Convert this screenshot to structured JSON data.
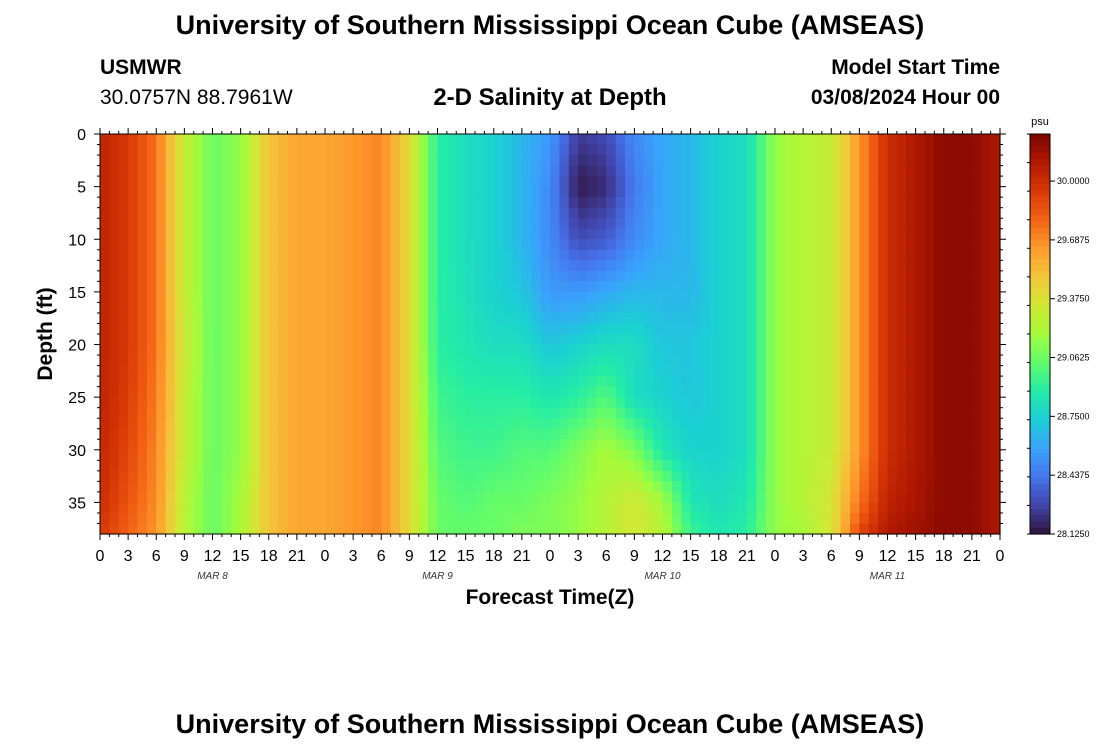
{
  "header": {
    "title": "University of Southern Mississippi Ocean Cube (AMSEAS)",
    "station": "USMWR",
    "coords": "30.0757N  88.7961W",
    "model_start_label": "Model Start Time",
    "model_start_value": "03/08/2024 Hour 00"
  },
  "footer": {
    "title": "University of Southern Mississippi Ocean Cube (AMSEAS)"
  },
  "chart_data": {
    "type": "heatmap",
    "title": "2-D Salinity at Depth",
    "xlabel": "Forecast Time(Z)",
    "ylabel": "Depth (ft)",
    "ylim": [
      0,
      38
    ],
    "y_inverted": true,
    "xlim_hours": [
      0,
      96
    ],
    "x_tick_labels": [
      "0",
      "3",
      "6",
      "9",
      "12",
      "15",
      "18",
      "21",
      "0",
      "3",
      "6",
      "9",
      "12",
      "15",
      "18",
      "21",
      "0",
      "3",
      "6",
      "9",
      "12",
      "15",
      "18",
      "21",
      "0",
      "3",
      "6",
      "9",
      "12",
      "15",
      "18",
      "21",
      "0"
    ],
    "y_tick_values": [
      0,
      5,
      10,
      15,
      20,
      25,
      30,
      35
    ],
    "date_labels": [
      {
        "hour": 12,
        "label": "MAR 8"
      },
      {
        "hour": 36,
        "label": "MAR 9"
      },
      {
        "hour": 60,
        "label": "MAR 10"
      },
      {
        "hour": 84,
        "label": "MAR 11"
      }
    ],
    "colorbar": {
      "unit": "psu",
      "range": [
        28.125,
        30.25
      ],
      "tick_labels": [
        "30.0000",
        "29.6875",
        "29.3750",
        "29.0625",
        "28.7500",
        "28.4375",
        "28.1250"
      ],
      "tick_values": [
        30.0,
        29.6875,
        29.375,
        29.0625,
        28.75,
        28.4375,
        28.125
      ]
    },
    "depths_ft": [
      0,
      5,
      10,
      15,
      20,
      25,
      30,
      35,
      38
    ],
    "hours": [
      0,
      3,
      6,
      9,
      12,
      15,
      18,
      21,
      24,
      27,
      30,
      33,
      36,
      39,
      42,
      45,
      48,
      51,
      54,
      57,
      60,
      63,
      66,
      69,
      72,
      75,
      78,
      81,
      84,
      87,
      90,
      93,
      96
    ],
    "salinity_psu": [
      [
        30.05,
        30.05,
        30.05,
        30.05,
        30.05,
        30.05,
        30.03,
        30.0,
        29.95
      ],
      [
        29.95,
        29.95,
        29.95,
        29.95,
        29.95,
        29.93,
        29.9,
        29.85,
        29.8
      ],
      [
        29.75,
        29.75,
        29.75,
        29.75,
        29.75,
        29.73,
        29.7,
        29.68,
        29.65
      ],
      [
        29.3,
        29.3,
        29.3,
        29.3,
        29.32,
        29.3,
        29.3,
        29.25,
        29.25
      ],
      [
        29.05,
        29.05,
        29.05,
        29.05,
        29.05,
        29.05,
        29.05,
        29.05,
        29.05
      ],
      [
        29.15,
        29.15,
        29.15,
        29.15,
        29.15,
        29.15,
        29.15,
        29.2,
        29.2
      ],
      [
        29.5,
        29.5,
        29.5,
        29.5,
        29.5,
        29.5,
        29.5,
        29.5,
        29.5
      ],
      [
        29.6,
        29.6,
        29.6,
        29.6,
        29.6,
        29.6,
        29.6,
        29.6,
        29.6
      ],
      [
        29.6,
        29.6,
        29.6,
        29.6,
        29.6,
        29.6,
        29.6,
        29.6,
        29.6
      ],
      [
        29.65,
        29.65,
        29.65,
        29.65,
        29.65,
        29.65,
        29.65,
        29.65,
        29.65
      ],
      [
        29.7,
        29.7,
        29.7,
        29.7,
        29.7,
        29.7,
        29.7,
        29.7,
        29.7
      ],
      [
        29.4,
        29.4,
        29.4,
        29.4,
        29.4,
        29.4,
        29.4,
        29.4,
        29.4
      ],
      [
        28.9,
        28.9,
        28.9,
        28.9,
        28.9,
        28.95,
        29.0,
        29.05,
        29.05
      ],
      [
        28.8,
        28.8,
        28.8,
        28.82,
        28.85,
        28.9,
        28.95,
        29.0,
        29.05
      ],
      [
        28.75,
        28.75,
        28.75,
        28.75,
        28.8,
        28.9,
        28.95,
        29.05,
        29.05
      ],
      [
        28.65,
        28.65,
        28.65,
        28.7,
        28.8,
        28.9,
        29.0,
        29.05,
        29.1
      ],
      [
        28.55,
        28.5,
        28.5,
        28.55,
        28.7,
        28.85,
        29.0,
        29.1,
        29.1
      ],
      [
        28.25,
        28.15,
        28.3,
        28.55,
        28.75,
        28.9,
        29.1,
        29.15,
        29.15
      ],
      [
        28.3,
        28.2,
        28.35,
        28.6,
        28.8,
        29.0,
        29.2,
        29.25,
        29.25
      ],
      [
        28.5,
        28.45,
        28.5,
        28.65,
        28.8,
        28.8,
        29.1,
        29.35,
        29.35
      ],
      [
        28.6,
        28.6,
        28.6,
        28.65,
        28.7,
        28.75,
        28.85,
        29.2,
        29.25
      ],
      [
        28.65,
        28.65,
        28.65,
        28.65,
        28.7,
        28.7,
        28.75,
        28.85,
        28.95
      ],
      [
        28.75,
        28.75,
        28.75,
        28.75,
        28.75,
        28.75,
        28.75,
        28.8,
        28.85
      ],
      [
        28.8,
        28.8,
        28.8,
        28.8,
        28.8,
        28.8,
        28.8,
        28.85,
        28.9
      ],
      [
        29.15,
        29.15,
        29.15,
        29.15,
        29.15,
        29.15,
        29.15,
        29.15,
        29.15
      ],
      [
        29.25,
        29.25,
        29.25,
        29.25,
        29.25,
        29.25,
        29.25,
        29.25,
        29.2
      ],
      [
        29.3,
        29.3,
        29.3,
        29.3,
        29.3,
        29.3,
        29.3,
        29.35,
        29.35
      ],
      [
        29.65,
        29.65,
        29.65,
        29.65,
        29.65,
        29.65,
        29.65,
        29.75,
        29.9
      ],
      [
        30.0,
        30.0,
        30.0,
        30.0,
        30.0,
        30.0,
        30.0,
        30.05,
        30.1
      ],
      [
        30.1,
        30.1,
        30.1,
        30.1,
        30.1,
        30.1,
        30.1,
        30.12,
        30.15
      ],
      [
        30.2,
        30.2,
        30.2,
        30.2,
        30.2,
        30.2,
        30.2,
        30.2,
        30.2
      ],
      [
        30.2,
        30.2,
        30.2,
        30.2,
        30.2,
        30.2,
        30.2,
        30.2,
        30.2
      ],
      [
        30.1,
        30.1,
        30.1,
        30.1,
        30.1,
        30.1,
        30.1,
        30.1,
        30.1
      ]
    ]
  },
  "colors": {
    "colormap": [
      "#30123b",
      "#4145ab",
      "#4675ed",
      "#39a2fc",
      "#1bcfd4",
      "#24eca6",
      "#61fc6c",
      "#a4fc3b",
      "#d1e834",
      "#f3c63a",
      "#fe9b2d",
      "#f36315",
      "#d93806",
      "#b11901",
      "#7a0402"
    ]
  }
}
